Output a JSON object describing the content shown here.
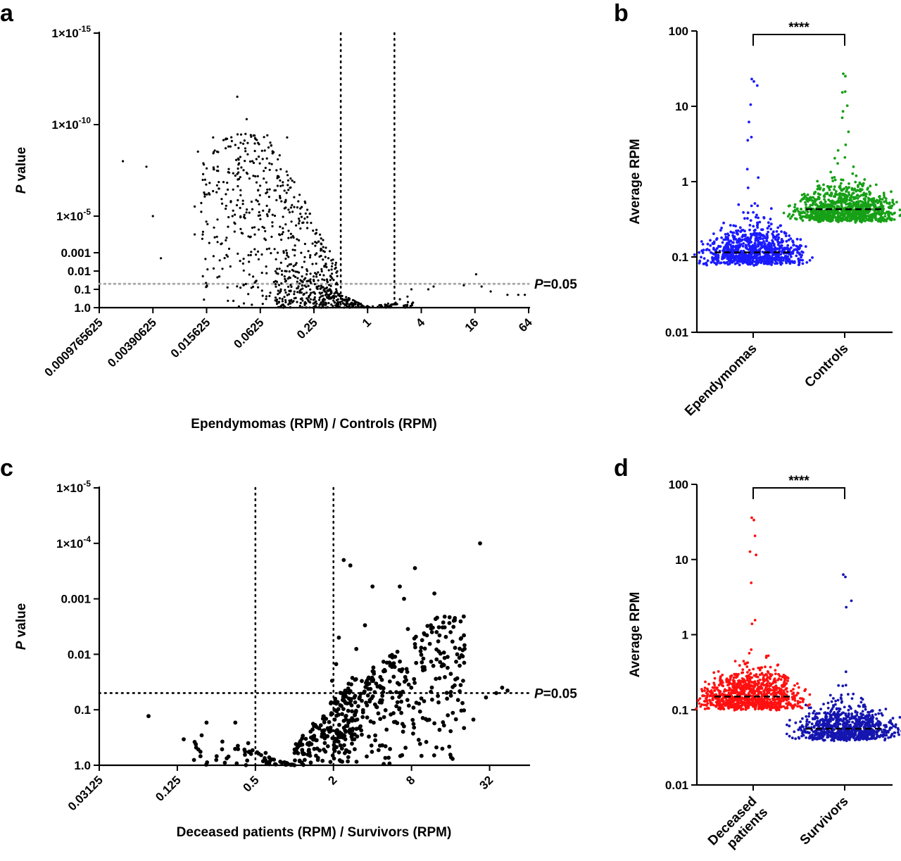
{
  "chart_data": [
    {
      "panel": "a",
      "type": "scatter",
      "xlabel": "Ependymomas (RPM) / Controls (RPM)",
      "ylabel_italic": "P",
      "ylabel_rest": " value",
      "x_scale": "log2",
      "y_scale": "-log10",
      "xlim": [
        0.0009765625,
        64
      ],
      "ylim": [
        1.0,
        1e-15
      ],
      "x_ticks": [
        0.0009765625,
        0.00390625,
        0.015625,
        0.0625,
        0.25,
        1,
        4,
        16,
        64
      ],
      "x_tick_labels": [
        "0.0009765625",
        "0.00390625",
        "0.015625",
        "0.0625",
        "0.25",
        "1",
        "4",
        "16",
        "64"
      ],
      "y_ticks": [
        1.0,
        0.1,
        0.01,
        0.001,
        1e-05,
        1e-10,
        1e-15
      ],
      "y_tick_labels": [
        {
          "base": "1.0",
          "exp": ""
        },
        {
          "base": "0.1",
          "exp": ""
        },
        {
          "base": "0.01",
          "exp": ""
        },
        {
          "base": "0.001",
          "exp": ""
        },
        {
          "base": "1×10",
          "exp": "-5"
        },
        {
          "base": "1×10",
          "exp": "-10"
        },
        {
          "base": "1×10",
          "exp": "-15"
        }
      ],
      "threshold_x": [
        0.5,
        2
      ],
      "threshold_p": 0.05,
      "threshold_label_italic": "P",
      "threshold_label_rest": "=0.05",
      "points": [
        [
          0.0018,
          1e-08
        ],
        [
          0.0033,
          2e-08
        ],
        [
          0.0039,
          1e-05
        ],
        [
          0.0048,
          0.002
        ],
        [
          0.0115,
          0.0001
        ],
        [
          0.0125,
          3e-09
        ],
        [
          0.0115,
          3e-06
        ],
        [
          0.0155,
          2e-05
        ],
        [
          0.0185,
          5e-10
        ],
        [
          0.0205,
          3e-09
        ],
        [
          0.0265,
          6e-10
        ],
        [
          0.0345,
          3e-12
        ],
        [
          0.0425,
          2e-09
        ],
        [
          0.0305,
          1e-05
        ],
        [
          0.031,
          5e-06
        ],
        [
          0.035,
          1e-07
        ],
        [
          0.059,
          1e-09
        ],
        [
          0.051,
          1e-08
        ],
        [
          0.044,
          5e-11
        ],
        [
          0.125,
          5e-10
        ],
        [
          0.14,
          2e-05
        ],
        [
          0.098,
          0.001
        ],
        [
          0.072,
          0.0002
        ],
        [
          0.36,
          0.2
        ],
        [
          0.42,
          0.3
        ],
        [
          0.47,
          0.5
        ],
        [
          0.58,
          0.55
        ],
        [
          0.7,
          0.7
        ],
        [
          0.85,
          0.9
        ],
        [
          1.0,
          1.0
        ],
        [
          1.3,
          0.9
        ],
        [
          1.7,
          0.6
        ],
        [
          2.3,
          0.35
        ],
        [
          2.8,
          0.25
        ],
        [
          3.1,
          0.1
        ],
        [
          4.8,
          0.1
        ],
        [
          5.5,
          0.07
        ],
        [
          12,
          0.06
        ],
        [
          16.5,
          0.015
        ],
        [
          19,
          0.07
        ],
        [
          24,
          0.13
        ],
        [
          37,
          0.2
        ],
        [
          49,
          0.2
        ],
        [
          58,
          0.2
        ]
      ]
    },
    {
      "panel": "b",
      "type": "scatter",
      "ylabel": "Average RPM",
      "y_scale": "log10",
      "ylim": [
        0.01,
        100
      ],
      "y_ticks": [
        0.01,
        0.1,
        1,
        10,
        100
      ],
      "y_tick_labels": [
        "0.01",
        "0.1",
        "1",
        "10",
        "100"
      ],
      "categories": [
        "Ependymomas",
        "Controls"
      ],
      "series": [
        {
          "name": "Ependymomas",
          "color": "#1a1aff",
          "median": 0.115,
          "min": 0.062,
          "max": 23
        },
        {
          "name": "Controls",
          "color": "#17a017",
          "median": 0.43,
          "min": 0.23,
          "max": 27
        }
      ],
      "significance": "****"
    },
    {
      "panel": "c",
      "type": "scatter",
      "xlabel": "Deceased patients (RPM) / Survivors (RPM)",
      "ylabel_italic": "P",
      "ylabel_rest": " value",
      "x_scale": "log2",
      "y_scale": "-log10",
      "xlim": [
        0.03125,
        64
      ],
      "ylim": [
        1.0,
        1e-05
      ],
      "x_ticks": [
        0.03125,
        0.125,
        0.5,
        2,
        8,
        32
      ],
      "x_tick_labels": [
        "0.03125",
        "0.125",
        "0.5",
        "2",
        "8",
        "32"
      ],
      "y_ticks": [
        1.0,
        0.1,
        0.01,
        0.001,
        0.0001,
        1e-05
      ],
      "y_tick_labels": [
        {
          "base": "1.0",
          "exp": ""
        },
        {
          "base": "0.1",
          "exp": ""
        },
        {
          "base": "0.01",
          "exp": ""
        },
        {
          "base": "0.001",
          "exp": ""
        },
        {
          "base": "1×10",
          "exp": "-4"
        },
        {
          "base": "1×10",
          "exp": "-5"
        }
      ],
      "threshold_x": [
        0.5,
        2
      ],
      "threshold_p": 0.05,
      "threshold_label_italic": "P",
      "threshold_label_rest": "=0.05",
      "points": [
        [
          0.075,
          0.13
        ],
        [
          0.14,
          0.34
        ],
        [
          0.17,
          0.38
        ],
        [
          0.21,
          0.17
        ],
        [
          0.35,
          0.17
        ],
        [
          0.44,
          0.4
        ],
        [
          0.6,
          0.6
        ],
        [
          0.8,
          0.9
        ],
        [
          1.0,
          1.0
        ],
        [
          1.2,
          0.8
        ],
        [
          1.5,
          0.5
        ],
        [
          1.8,
          0.3
        ],
        [
          1.95,
          0.03
        ],
        [
          2.1,
          0.015
        ],
        [
          2.2,
          0.005
        ],
        [
          2.4,
          0.0002
        ],
        [
          2.7,
          0.00025
        ],
        [
          3.0,
          0.008
        ],
        [
          3.5,
          0.003
        ],
        [
          4.0,
          0.0006
        ],
        [
          5.0,
          0.02
        ],
        [
          6.5,
          0.0006
        ],
        [
          7.0,
          0.001
        ],
        [
          7.5,
          0.0035
        ],
        [
          8.5,
          0.00028
        ],
        [
          10,
          0.07
        ],
        [
          12,
          0.0008
        ],
        [
          16,
          0.004
        ],
        [
          18,
          0.01
        ],
        [
          20,
          0.03
        ],
        [
          24,
          0.15
        ],
        [
          27,
          0.0001
        ],
        [
          30,
          0.06
        ],
        [
          36,
          0.05
        ],
        [
          40,
          0.04
        ],
        [
          44,
          0.045
        ]
      ]
    },
    {
      "panel": "d",
      "type": "scatter",
      "ylabel": "Average RPM",
      "y_scale": "log10",
      "ylim": [
        0.01,
        100
      ],
      "y_ticks": [
        0.01,
        0.1,
        1,
        10,
        100
      ],
      "y_tick_labels": [
        "0.01",
        "0.1",
        "1",
        "10",
        "100"
      ],
      "categories": [
        "Deceased patients",
        "Survivors"
      ],
      "category_lines": [
        [
          "Deceased",
          "patients"
        ],
        [
          "Survivors"
        ]
      ],
      "series": [
        {
          "name": "Deceased patients",
          "color": "#ff1010",
          "median": 0.15,
          "min": 0.078,
          "max": 36
        },
        {
          "name": "Survivors",
          "color": "#1515b0",
          "median": 0.056,
          "min": 0.031,
          "max": 6.3
        }
      ],
      "significance": "****"
    }
  ]
}
